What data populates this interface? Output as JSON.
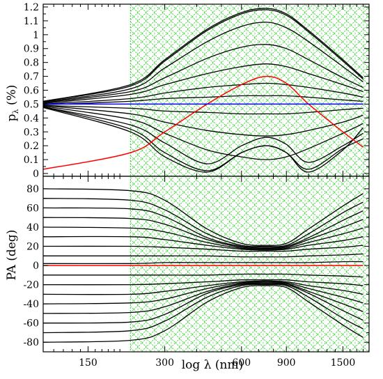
{
  "chart_data": [
    {
      "type": "line",
      "panel": "top",
      "ylabel_main": "p",
      "ylabel_sub": "λ",
      "ylabel_tail": " (%)",
      "xscale": "log",
      "xlim_nm": [
        100,
        1900
      ],
      "ylim": [
        -0.02,
        1.22
      ],
      "yticks": [
        "0",
        "0.1",
        "0.2",
        "0.3",
        "0.4",
        "0.5",
        "0.6",
        "0.7",
        "0.8",
        "0.9",
        "1",
        "1.1",
        "1.2"
      ],
      "shaded_region_nm": [
        220,
        1900
      ],
      "sample_x_nm": [
        100,
        220,
        300,
        440,
        600,
        750,
        900,
        1100,
        1500,
        1800
      ],
      "series": [
        {
          "color": "#000000",
          "values": [
            0.52,
            0.64,
            0.82,
            1.04,
            1.16,
            1.19,
            1.15,
            1.03,
            0.82,
            0.69
          ]
        },
        {
          "color": "#000000",
          "values": [
            0.52,
            0.63,
            0.81,
            1.03,
            1.15,
            1.18,
            1.14,
            1.02,
            0.81,
            0.68
          ]
        },
        {
          "color": "#000000",
          "values": [
            0.515,
            0.61,
            0.76,
            0.95,
            1.06,
            1.09,
            1.05,
            0.95,
            0.77,
            0.66
          ]
        },
        {
          "color": "#000000",
          "values": [
            0.51,
            0.59,
            0.69,
            0.83,
            0.91,
            0.93,
            0.9,
            0.82,
            0.69,
            0.62
          ]
        },
        {
          "color": "#000000",
          "values": [
            0.505,
            0.57,
            0.64,
            0.72,
            0.77,
            0.79,
            0.77,
            0.72,
            0.64,
            0.59
          ]
        },
        {
          "color": "#000000",
          "values": [
            0.5,
            0.54,
            0.58,
            0.62,
            0.64,
            0.65,
            0.64,
            0.62,
            0.58,
            0.55
          ]
        },
        {
          "color": "#000000",
          "values": [
            0.495,
            0.52,
            0.54,
            0.55,
            0.56,
            0.56,
            0.56,
            0.55,
            0.53,
            0.52
          ]
        },
        {
          "color": "#000000",
          "values": [
            0.49,
            0.47,
            0.45,
            0.44,
            0.43,
            0.43,
            0.43,
            0.44,
            0.46,
            0.47
          ]
        },
        {
          "color": "#000000",
          "values": [
            0.49,
            0.43,
            0.37,
            0.31,
            0.28,
            0.27,
            0.28,
            0.31,
            0.37,
            0.42
          ]
        },
        {
          "color": "#000000",
          "values": [
            0.485,
            0.39,
            0.29,
            0.17,
            0.12,
            0.1,
            0.12,
            0.18,
            0.29,
            0.36
          ]
        },
        {
          "color": "#000000",
          "values": [
            0.48,
            0.35,
            0.22,
            0.07,
            0.2,
            0.26,
            0.21,
            0.08,
            0.2,
            0.29
          ]
        },
        {
          "color": "#000000",
          "values": [
            0.48,
            0.32,
            0.15,
            0.02,
            0.15,
            0.2,
            0.15,
            0.03,
            0.18,
            0.25
          ]
        },
        {
          "color": "#000000",
          "values": [
            0.475,
            0.3,
            0.12,
            0.01,
            0.15,
            0.2,
            0.15,
            0.01,
            0.17,
            0.33
          ]
        },
        {
          "color": "#ff0000",
          "values": [
            0.03,
            0.15,
            0.3,
            0.5,
            0.64,
            0.7,
            0.65,
            0.5,
            0.3,
            0.19
          ]
        },
        {
          "color": "#0000ff",
          "values": [
            0.5,
            0.5,
            0.5,
            0.5,
            0.5,
            0.5,
            0.5,
            0.5,
            0.5,
            0.5
          ]
        }
      ]
    },
    {
      "type": "line",
      "panel": "bottom",
      "ylabel": "PA (deg)",
      "xlabel": "log λ (nm)",
      "xscale": "log",
      "xlim_nm": [
        100,
        1900
      ],
      "ylim": [
        -90,
        93
      ],
      "yticks": [
        "-80",
        "-60",
        "-40",
        "-20",
        "0",
        "20",
        "40",
        "60",
        "80"
      ],
      "xtick_labels": [
        "150",
        "300",
        "600",
        "900",
        "1500"
      ],
      "xtick_values_nm": [
        150,
        300,
        600,
        900,
        1500
      ],
      "shaded_region_nm": [
        220,
        1900
      ],
      "sample_x_nm": [
        100,
        220,
        300,
        440,
        600,
        750,
        900,
        1100,
        1500,
        1800
      ],
      "series": [
        {
          "color": "#000000",
          "values": [
            80,
            78,
            68,
            38,
            23,
            21,
            23,
            38,
            62,
            75
          ]
        },
        {
          "color": "#000000",
          "values": [
            70,
            68,
            58,
            33,
            21,
            20,
            21,
            33,
            55,
            66
          ]
        },
        {
          "color": "#000000",
          "values": [
            60,
            59,
            51,
            29,
            20,
            19,
            20,
            29,
            47,
            57
          ]
        },
        {
          "color": "#000000",
          "values": [
            50,
            49,
            43,
            27,
            19,
            18,
            19,
            27,
            40,
            48
          ]
        },
        {
          "color": "#000000",
          "values": [
            40,
            39,
            35,
            24,
            18,
            17,
            18,
            24,
            33,
            39
          ]
        },
        {
          "color": "#000000",
          "values": [
            30,
            30,
            27,
            21,
            17,
            16,
            17,
            21,
            26,
            30
          ]
        },
        {
          "color": "#000000",
          "values": [
            20,
            20,
            19,
            17,
            15,
            15,
            15,
            17,
            19,
            21
          ]
        },
        {
          "color": "#000000",
          "values": [
            10,
            10,
            10,
            10,
            9,
            9,
            9,
            10,
            11,
            12
          ]
        },
        {
          "color": "#000000",
          "values": [
            2,
            2,
            3,
            3,
            3,
            3,
            3,
            3,
            4,
            4
          ]
        },
        {
          "color": "#000000",
          "values": [
            -10,
            -10,
            -10,
            -10,
            -9,
            -9,
            -9,
            -10,
            -11,
            -12
          ]
        },
        {
          "color": "#000000",
          "values": [
            -20,
            -20,
            -19,
            -17,
            -15,
            -15,
            -15,
            -17,
            -19,
            -21
          ]
        },
        {
          "color": "#000000",
          "values": [
            -30,
            -30,
            -27,
            -21,
            -17,
            -16,
            -17,
            -21,
            -26,
            -30
          ]
        },
        {
          "color": "#000000",
          "values": [
            -40,
            -39,
            -35,
            -24,
            -18,
            -17,
            -18,
            -24,
            -33,
            -39
          ]
        },
        {
          "color": "#000000",
          "values": [
            -50,
            -49,
            -43,
            -27,
            -19,
            -18,
            -19,
            -27,
            -40,
            -48
          ]
        },
        {
          "color": "#000000",
          "values": [
            -60,
            -59,
            -51,
            -29,
            -20,
            -19,
            -20,
            -29,
            -47,
            -57
          ]
        },
        {
          "color": "#000000",
          "values": [
            -70,
            -68,
            -58,
            -33,
            -21,
            -20,
            -21,
            -33,
            -55,
            -66
          ]
        },
        {
          "color": "#000000",
          "values": [
            -80,
            -78,
            -68,
            -38,
            -23,
            -21,
            -23,
            -38,
            -62,
            -75
          ]
        },
        {
          "color": "#ff0000",
          "values": [
            0,
            0,
            0,
            0,
            0,
            0,
            0,
            0,
            0,
            0
          ]
        }
      ]
    }
  ],
  "colors": {
    "shading": "#33cc33",
    "axis": "#000000"
  }
}
